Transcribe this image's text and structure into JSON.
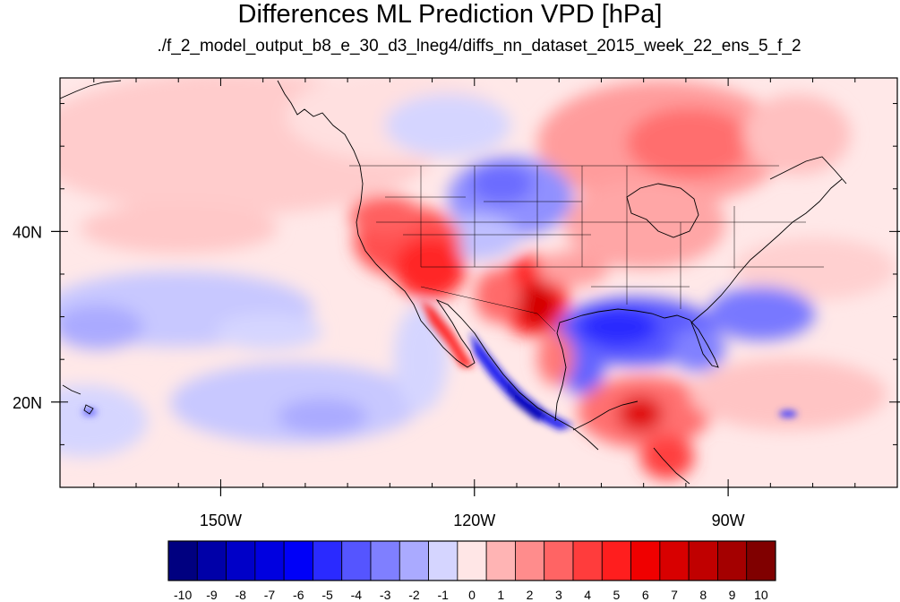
{
  "title": "Differences ML Prediction VPD [hPa]",
  "subtitle": "./f_2_model_output_b8_e_30_d3_lneg4/diffs_nn_dataset_2015_week_22_ens_5_f_2",
  "map": {
    "lon_range": [
      -169,
      -70
    ],
    "lat_range": [
      10,
      58
    ],
    "x_ticks": [
      {
        "lon": -150,
        "label": "150W"
      },
      {
        "lon": -120,
        "label": "120W"
      },
      {
        "lon": -90,
        "label": "90W"
      }
    ],
    "y_ticks": [
      {
        "lat": 40,
        "label": "40N"
      },
      {
        "lat": 20,
        "label": "20N"
      }
    ]
  },
  "colorbar": {
    "levels": [
      -10,
      -9,
      -8,
      -7,
      -6,
      -5,
      -4,
      -3,
      -2,
      -1,
      0,
      1,
      2,
      3,
      4,
      5,
      6,
      7,
      8,
      9,
      10
    ],
    "labels": [
      "-10",
      "-9",
      "-8",
      "-7",
      "-6",
      "-5",
      "-4",
      "-3",
      "-2",
      "-1",
      "0",
      "1",
      "2",
      "3",
      "4",
      "5",
      "6",
      "7",
      "8",
      "9",
      "10"
    ],
    "colors": [
      "#000080",
      "#0000a8",
      "#0000c8",
      "#0000e0",
      "#0000f8",
      "#2a2aff",
      "#5555ff",
      "#7f7fff",
      "#aaaaff",
      "#d5d5ff",
      "#ffe6e6",
      "#ffb4b4",
      "#ff8c8c",
      "#ff6464",
      "#ff3c3c",
      "#ff1e1e",
      "#f00000",
      "#d80000",
      "#c00000",
      "#a40000",
      "#800000"
    ]
  }
}
